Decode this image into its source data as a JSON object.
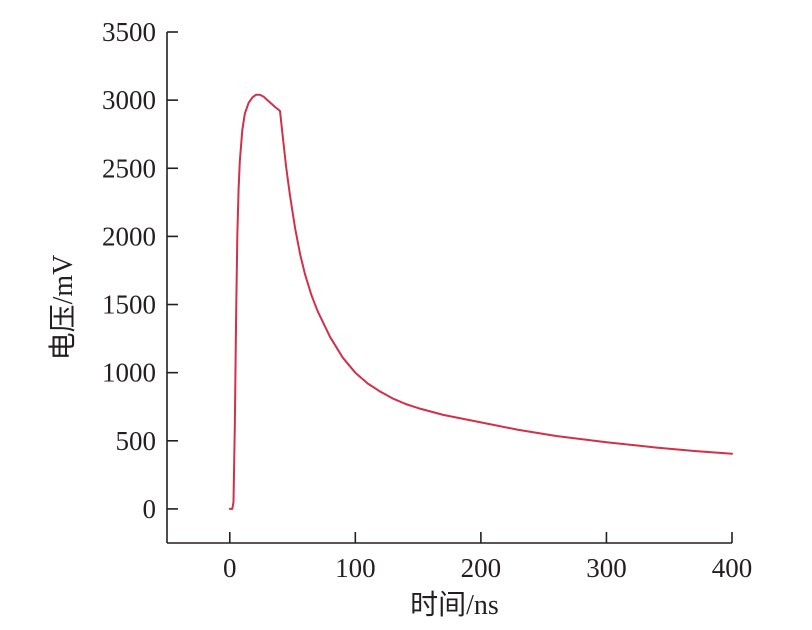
{
  "chart_data": {
    "type": "line",
    "xlabel": "时间/ns",
    "ylabel": "电压/mV",
    "xlim": [
      -50,
      400
    ],
    "ylim": [
      -250,
      3500
    ],
    "xticks": [
      0,
      100,
      200,
      300,
      400
    ],
    "yticks": [
      0,
      500,
      1000,
      1500,
      2000,
      2500,
      3000,
      3500
    ],
    "grid": false,
    "colors": {
      "series": "#d0304a",
      "axis": "#231f20"
    },
    "series": [
      {
        "x": [
          0,
          2,
          3,
          4,
          5,
          6,
          7,
          8,
          10,
          12,
          15,
          18,
          21,
          24,
          27,
          30,
          33,
          36,
          40,
          42,
          45,
          48,
          52,
          56,
          60,
          65,
          70,
          80,
          90,
          100,
          110,
          120,
          130,
          140,
          150,
          170,
          200,
          230,
          260,
          300,
          340,
          370,
          400
        ],
        "y": [
          0,
          0,
          50,
          600,
          1400,
          2000,
          2350,
          2550,
          2780,
          2900,
          2980,
          3020,
          3040,
          3040,
          3025,
          3000,
          2975,
          2950,
          2920,
          2750,
          2500,
          2300,
          2060,
          1870,
          1720,
          1570,
          1450,
          1260,
          1110,
          1000,
          920,
          860,
          810,
          770,
          740,
          690,
          635,
          580,
          535,
          490,
          450,
          425,
          405
        ]
      }
    ]
  }
}
